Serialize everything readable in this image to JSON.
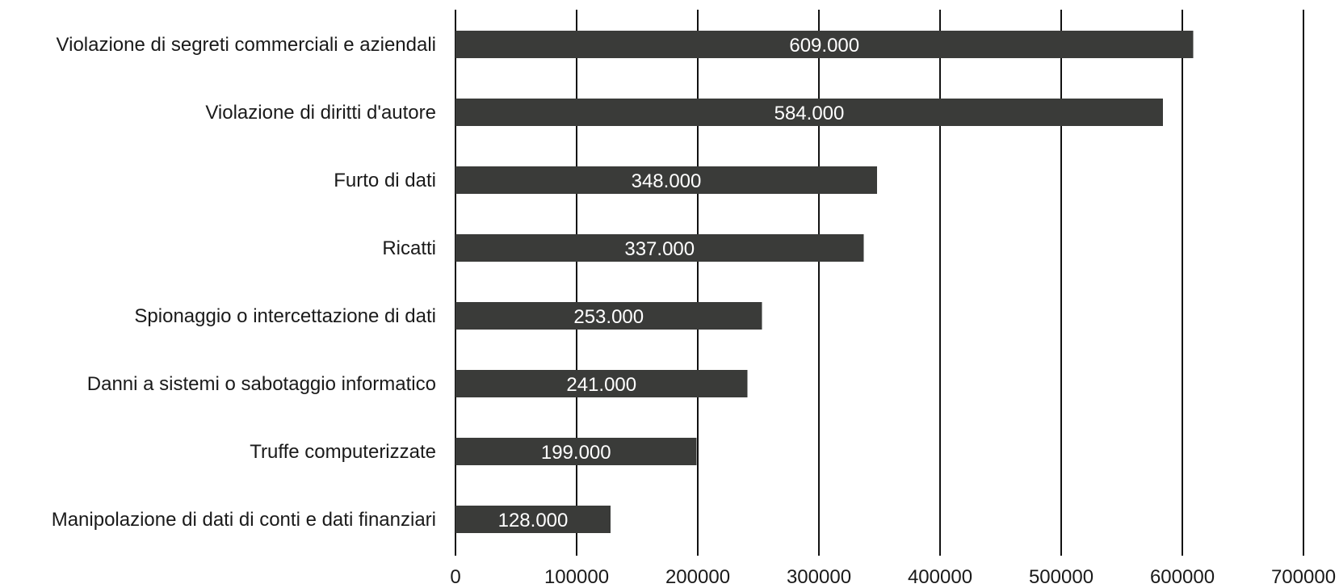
{
  "chart_data": {
    "type": "bar",
    "orientation": "horizontal",
    "categories": [
      "Violazione di segreti commerciali e aziendali",
      "Violazione di diritti d'autore",
      "Furto di dati",
      "Ricatti",
      "Spionaggio o intercettazione di dati",
      "Danni a sistemi o sabotaggio informatico",
      "Truffe computerizzate",
      "Manipolazione di dati di conti e dati finanziari"
    ],
    "values": [
      609000,
      584000,
      348000,
      337000,
      253000,
      241000,
      199000,
      128000
    ],
    "value_labels": [
      "609.000",
      "584.000",
      "348.000",
      "337.000",
      "253.000",
      "241.000",
      "199.000",
      "128.000"
    ],
    "x_ticks": [
      0,
      100000,
      200000,
      300000,
      400000,
      500000,
      600000,
      700000
    ],
    "x_tick_labels": [
      "0",
      "100000",
      "200000",
      "300000",
      "400000",
      "500000",
      "600000",
      "700000"
    ],
    "xlim": [
      0,
      700000
    ],
    "title": "",
    "xlabel": "",
    "ylabel": "",
    "grid": "vertical",
    "legend": "none",
    "colors": {
      "bar": "#3a3b39",
      "value_label": "#ffffff",
      "grid": "#111111"
    }
  }
}
